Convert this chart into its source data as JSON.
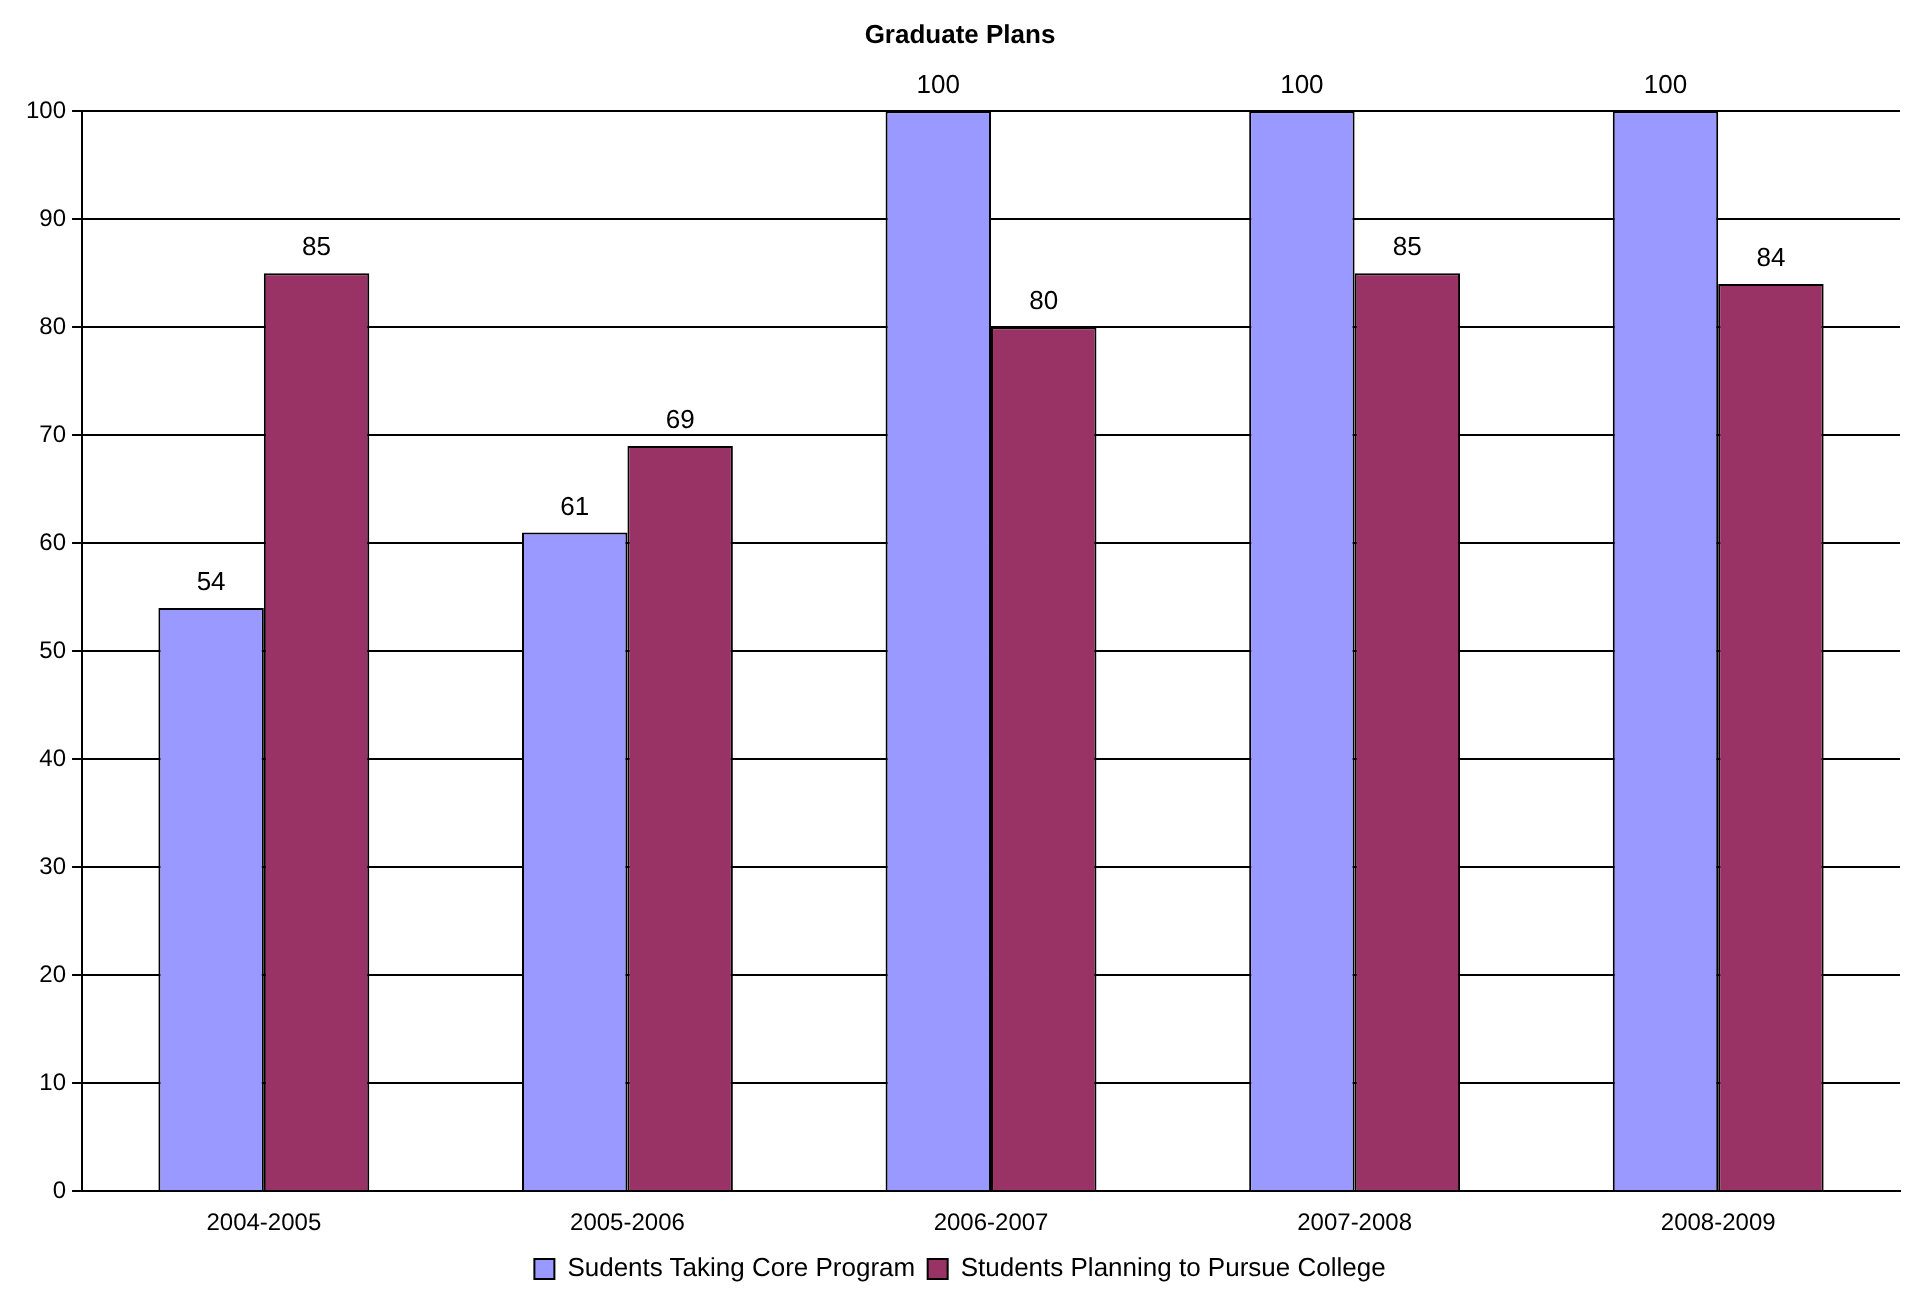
{
  "chart_data": {
    "type": "bar",
    "title": "Graduate Plans",
    "categories": [
      "2004-2005",
      "2005-2006",
      "2006-2007",
      "2007-2008",
      "2008-2009"
    ],
    "series": [
      {
        "name": "Sudents Taking Core Program",
        "color": "#9999ff",
        "values": [
          54,
          61,
          100,
          100,
          100
        ]
      },
      {
        "name": "Students Planning to Pursue College",
        "color": "#993366",
        "values": [
          85,
          69,
          80,
          85,
          84
        ]
      }
    ],
    "ylim": [
      0,
      100
    ],
    "yticks": [
      0,
      10,
      20,
      30,
      40,
      50,
      60,
      70,
      80,
      90,
      100
    ],
    "grid": "y",
    "legend": "bottom",
    "data_labels": true
  }
}
